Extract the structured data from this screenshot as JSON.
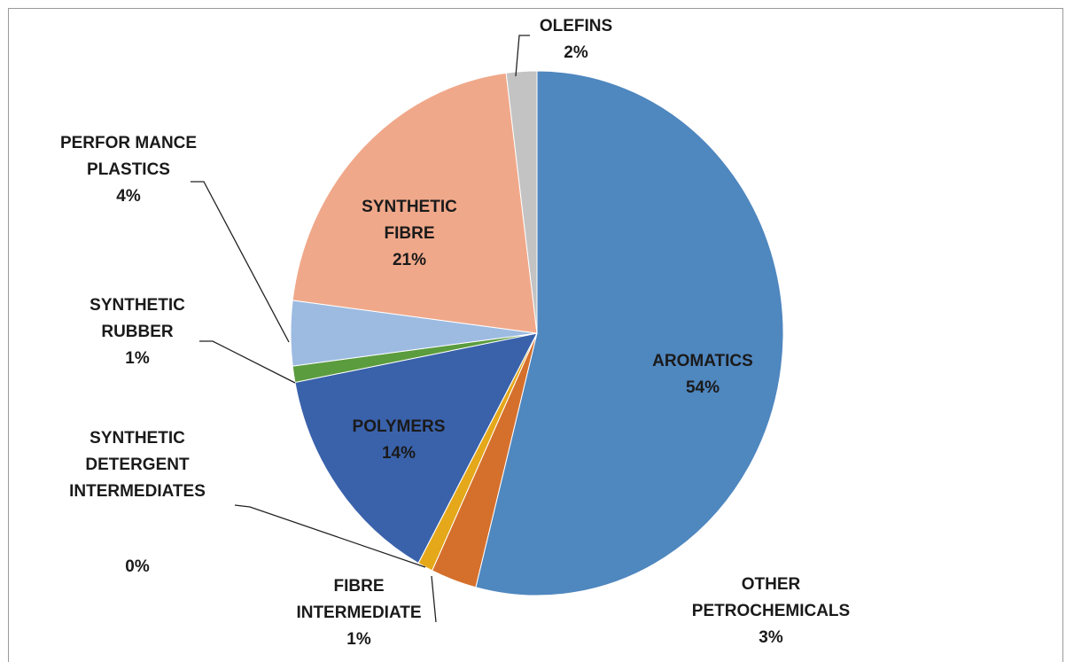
{
  "chart_data": {
    "type": "pie",
    "categories": [
      "AROMATICS",
      "OTHER\nPETROCHEMICALS",
      "FIBRE\nINTERMEDIATE",
      "SYNTHETIC\nDETERGENT\nINTERMEDIATES",
      "POLYMERS",
      "SYNTHETIC\nRUBBER",
      "PERFOR MANCE\nPLASTICS",
      "SYNTHETIC\nFIBRE",
      "OLEFINS"
    ],
    "values": [
      54,
      3,
      1,
      0,
      14,
      1,
      4,
      21,
      2
    ],
    "value_labels": [
      "54%",
      "3%",
      "1%",
      "0%",
      "14%",
      "1%",
      "4%",
      "21%",
      "2%"
    ],
    "colors": [
      "#4f87bf",
      "#d5702c",
      "#e5a81a",
      "#a9a9a9",
      "#3a62ab",
      "#5b9c3e",
      "#9dbbe1",
      "#f0a88a",
      "#c3c3c3"
    ]
  }
}
